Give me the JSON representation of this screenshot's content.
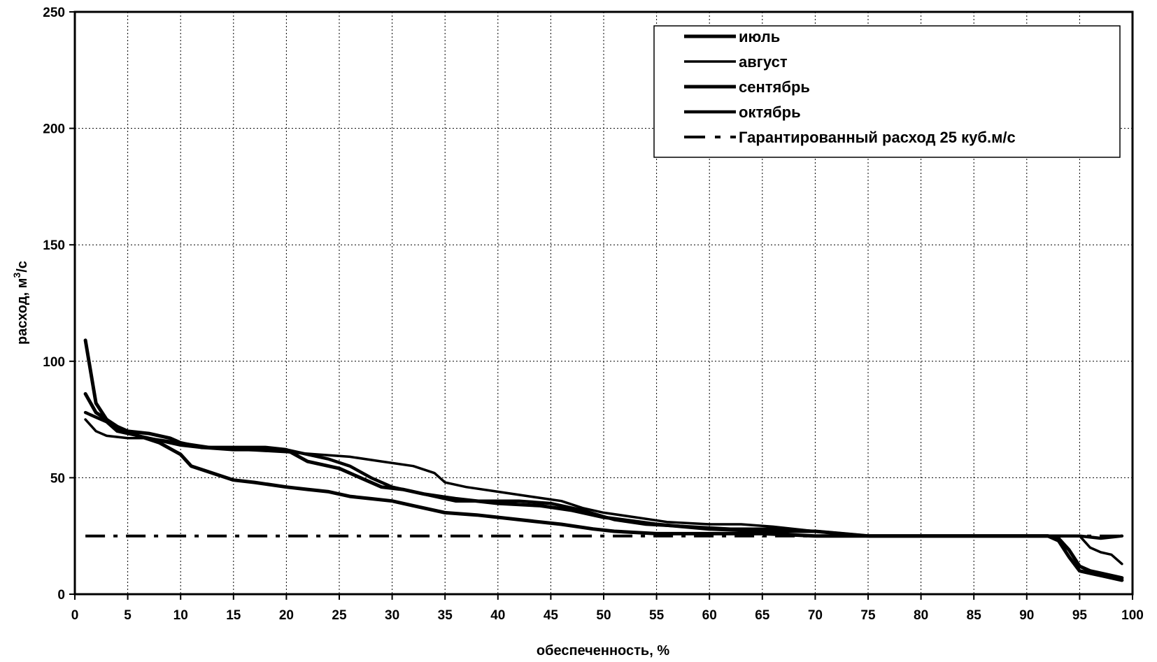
{
  "chart_data": {
    "type": "line",
    "xlabel": "обеспеченность, %",
    "ylabel_prefix": "расход, м",
    "ylabel_sup": "3",
    "ylabel_suffix": "/с",
    "xlim": [
      0,
      100
    ],
    "ylim": [
      0,
      250
    ],
    "x_ticks": [
      0,
      5,
      10,
      15,
      20,
      25,
      30,
      35,
      40,
      45,
      50,
      55,
      60,
      65,
      70,
      75,
      80,
      85,
      90,
      95,
      100
    ],
    "y_ticks": [
      0,
      50,
      100,
      150,
      200,
      250
    ],
    "grid": true,
    "legend_position": "top-right",
    "series": [
      {
        "name": "июль",
        "style": "solid",
        "points": [
          [
            1,
            109
          ],
          [
            2,
            82
          ],
          [
            3,
            75
          ],
          [
            4,
            72
          ],
          [
            5,
            70
          ],
          [
            7,
            69
          ],
          [
            9,
            67
          ],
          [
            10,
            65
          ],
          [
            12,
            63
          ],
          [
            15,
            63
          ],
          [
            18,
            63
          ],
          [
            20,
            62
          ],
          [
            22,
            57
          ],
          [
            25,
            54
          ],
          [
            27,
            50
          ],
          [
            29,
            46
          ],
          [
            31,
            45
          ],
          [
            33,
            43
          ],
          [
            36,
            41
          ],
          [
            40,
            39
          ],
          [
            44,
            38
          ],
          [
            47,
            36
          ],
          [
            50,
            33
          ],
          [
            55,
            30
          ],
          [
            60,
            28
          ],
          [
            65,
            27
          ],
          [
            70,
            27
          ],
          [
            75,
            25
          ],
          [
            80,
            25
          ],
          [
            85,
            25
          ],
          [
            90,
            25
          ],
          [
            92,
            25
          ],
          [
            93,
            24
          ],
          [
            94,
            19
          ],
          [
            95,
            12
          ],
          [
            96,
            10
          ],
          [
            97,
            9
          ],
          [
            98,
            8
          ],
          [
            99,
            7
          ]
        ]
      },
      {
        "name": "август",
        "style": "solid",
        "points": [
          [
            1,
            75
          ],
          [
            2,
            70
          ],
          [
            3,
            68
          ],
          [
            5,
            67
          ],
          [
            7,
            67
          ],
          [
            10,
            65
          ],
          [
            13,
            63
          ],
          [
            16,
            62
          ],
          [
            20,
            61
          ],
          [
            23,
            60
          ],
          [
            26,
            59
          ],
          [
            29,
            57
          ],
          [
            32,
            55
          ],
          [
            34,
            52
          ],
          [
            35,
            48
          ],
          [
            37,
            46
          ],
          [
            40,
            44
          ],
          [
            43,
            42
          ],
          [
            46,
            40
          ],
          [
            48,
            37
          ],
          [
            50,
            35
          ],
          [
            53,
            33
          ],
          [
            56,
            31
          ],
          [
            60,
            30
          ],
          [
            63,
            30
          ],
          [
            66,
            29
          ],
          [
            70,
            27
          ],
          [
            75,
            25
          ],
          [
            80,
            25
          ],
          [
            85,
            25
          ],
          [
            90,
            25
          ],
          [
            95,
            25
          ],
          [
            96,
            20
          ],
          [
            97,
            18
          ],
          [
            98,
            17
          ],
          [
            99,
            13
          ]
        ]
      },
      {
        "name": "сентябрь",
        "style": "solid",
        "points": [
          [
            1,
            86
          ],
          [
            2,
            78
          ],
          [
            3,
            75
          ],
          [
            4,
            71
          ],
          [
            6,
            68
          ],
          [
            8,
            65
          ],
          [
            10,
            60
          ],
          [
            11,
            55
          ],
          [
            13,
            52
          ],
          [
            15,
            49
          ],
          [
            17,
            48
          ],
          [
            20,
            46
          ],
          [
            22,
            45
          ],
          [
            24,
            44
          ],
          [
            26,
            42
          ],
          [
            28,
            41
          ],
          [
            30,
            40
          ],
          [
            32,
            38
          ],
          [
            35,
            35
          ],
          [
            38,
            34
          ],
          [
            42,
            32
          ],
          [
            46,
            30
          ],
          [
            49,
            28
          ],
          [
            51,
            27
          ],
          [
            55,
            26
          ],
          [
            60,
            26
          ],
          [
            65,
            26
          ],
          [
            70,
            25
          ],
          [
            75,
            25
          ],
          [
            80,
            25
          ],
          [
            85,
            25
          ],
          [
            90,
            25
          ],
          [
            92,
            25
          ],
          [
            93,
            23
          ],
          [
            94,
            16
          ],
          [
            95,
            10
          ],
          [
            96,
            9
          ],
          [
            97,
            8
          ],
          [
            98,
            7
          ],
          [
            99,
            6
          ]
        ]
      },
      {
        "name": "октябрь",
        "style": "solid",
        "points": [
          [
            1,
            78
          ],
          [
            2,
            76
          ],
          [
            3,
            74
          ],
          [
            4,
            70
          ],
          [
            6,
            68
          ],
          [
            8,
            66
          ],
          [
            10,
            64
          ],
          [
            12,
            63
          ],
          [
            15,
            62
          ],
          [
            18,
            62
          ],
          [
            20,
            62
          ],
          [
            22,
            60
          ],
          [
            24,
            58
          ],
          [
            26,
            55
          ],
          [
            28,
            50
          ],
          [
            30,
            46
          ],
          [
            32,
            44
          ],
          [
            34,
            42
          ],
          [
            36,
            40
          ],
          [
            38,
            40
          ],
          [
            42,
            40
          ],
          [
            45,
            39
          ],
          [
            48,
            36
          ],
          [
            51,
            32
          ],
          [
            54,
            30
          ],
          [
            58,
            29
          ],
          [
            62,
            28
          ],
          [
            66,
            28
          ],
          [
            70,
            27
          ],
          [
            75,
            25
          ],
          [
            80,
            25
          ],
          [
            85,
            25
          ],
          [
            90,
            25
          ],
          [
            95,
            25
          ],
          [
            97,
            24
          ],
          [
            99,
            25
          ]
        ]
      },
      {
        "name": "Гарантированный расход 25 куб.м/с",
        "style": "dashdot",
        "points": [
          [
            1,
            25
          ],
          [
            99,
            25
          ]
        ]
      }
    ]
  }
}
